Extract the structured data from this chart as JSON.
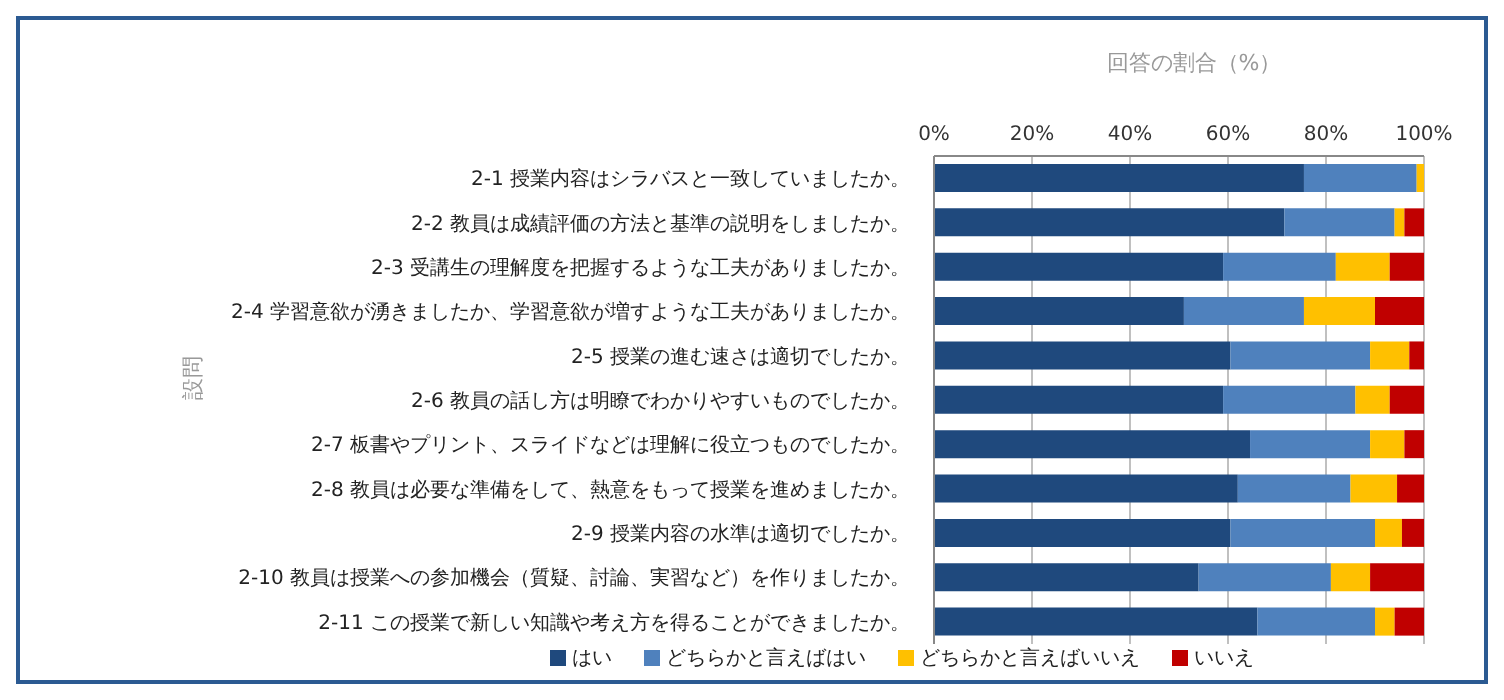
{
  "chart_data": {
    "type": "bar",
    "orientation": "horizontal",
    "stacked": true,
    "xlabel": "回答の割合（%）",
    "ylabel": "設問",
    "categories": [
      "2-1 授業内容はシラバスと一致していましたか。",
      "2-2 教員は成績評価の方法と基準の説明をしましたか。",
      "2-3 受講生の理解度を把握するような工夫がありましたか。",
      "2-4 学習意欲が湧きましたか、学習意欲が増すような工夫がありましたか。",
      "2-5 授業の進む速さは適切でしたか。",
      "2-6 教員の話し方は明瞭でわかりやすいものでしたか。",
      "2-7 板書やプリント、スライドなどは理解に役立つものでしたか。",
      "2-8 教員は必要な準備をして、熱意をもって授業を進めましたか。",
      "2-9 授業内容の水準は適切でしたか。",
      "2-10 教員は授業への参加機会（質疑、討論、実習など）を作りましたか。",
      "2-11 この授業で新しい知識や考え方を得ることができましたか。"
    ],
    "series": [
      {
        "name": "はい",
        "color": "#1f497d",
        "values": [
          75.5,
          71.5,
          59,
          51,
          60.5,
          59,
          64.5,
          62,
          60.5,
          54,
          66
        ]
      },
      {
        "name": "どちらかと言えばはい",
        "color": "#4f81bd",
        "values": [
          23,
          22.5,
          23,
          24.5,
          28.5,
          27,
          24.5,
          23,
          29.5,
          27,
          24
        ]
      },
      {
        "name": "どちらかと言えばいいえ",
        "color": "#ffc000",
        "values": [
          1.5,
          2,
          11,
          14.5,
          8,
          7,
          7,
          9.5,
          5.5,
          8,
          4
        ]
      },
      {
        "name": "いいえ",
        "color": "#c00000",
        "values": [
          0,
          4,
          7,
          10,
          3,
          7,
          4,
          5.5,
          4.5,
          11,
          6
        ]
      }
    ],
    "xlim": [
      0,
      100
    ],
    "xticks": [
      {
        "value": 0,
        "label": "0%"
      },
      {
        "value": 20,
        "label": "20%"
      },
      {
        "value": 40,
        "label": "40%"
      },
      {
        "value": 60,
        "label": "60%"
      },
      {
        "value": 80,
        "label": "80%"
      },
      {
        "value": 100,
        "label": "100%"
      }
    ],
    "grid": "x",
    "legend": "bottom"
  }
}
